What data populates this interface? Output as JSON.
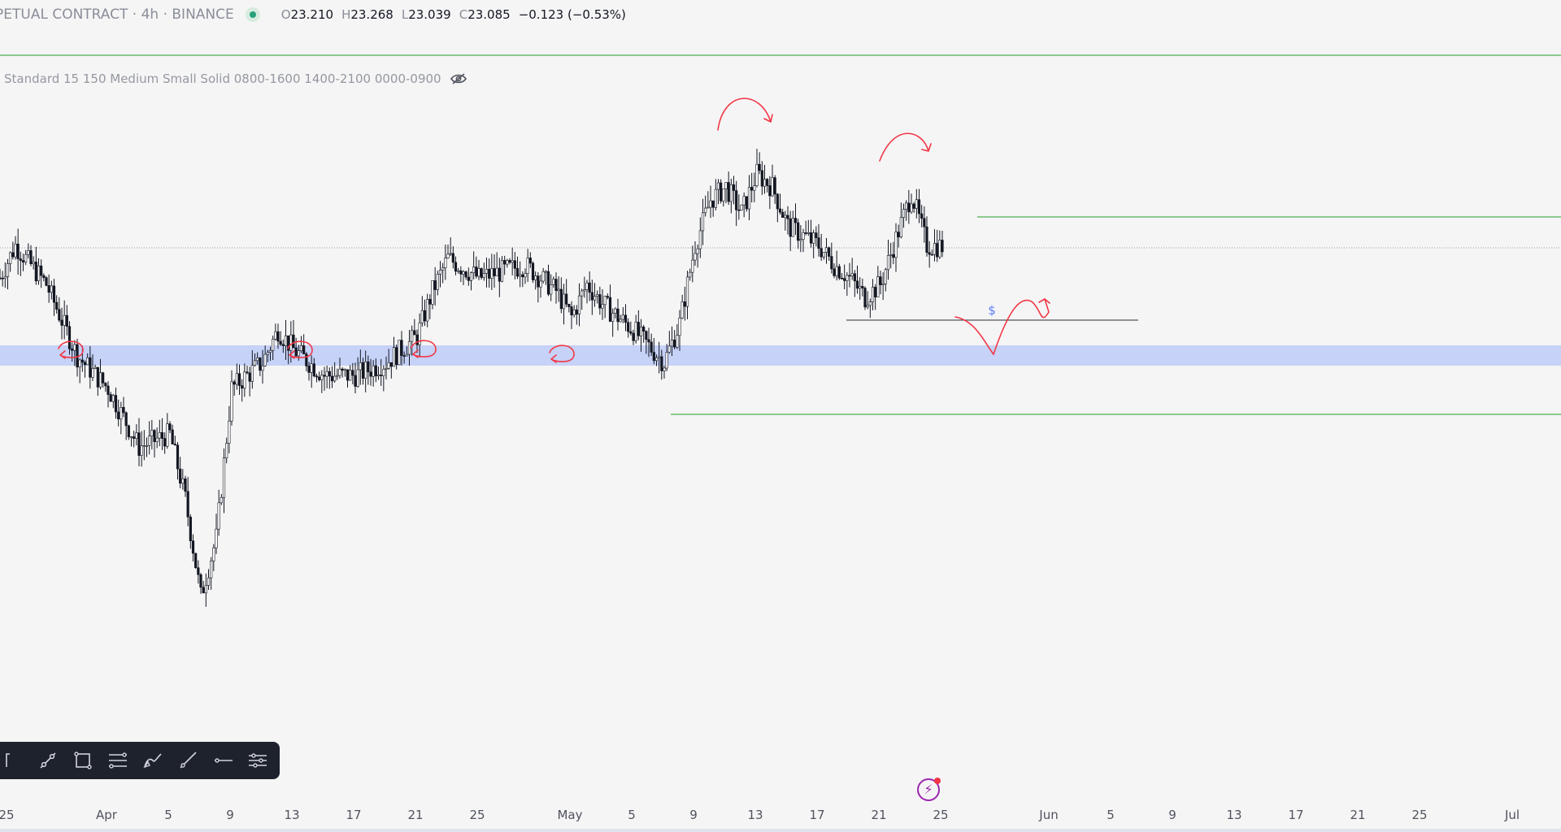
{
  "legend": {
    "symbol_title": "PETUAL CONTRACT · 4h · BINANCE",
    "open_label": "O",
    "open": "23.210",
    "high_label": "H",
    "high": "23.268",
    "low_label": "L",
    "low": "23.039",
    "close_label": "C",
    "close": "23.085",
    "change": "−0.123 (−0.53%)"
  },
  "indicator": {
    "text": "Standard 15 150 Medium Small Solid 0800-1600 1400-2100 0000-0900",
    "visibility_icon": "eye-off-icon"
  },
  "drawing_toolbar": {
    "tools": [
      "cursor-icon",
      "trendline-icon",
      "rectangle-icon",
      "fib-retracement-icon",
      "brush-icon",
      "ray-icon",
      "horizontal-ray-icon",
      "settings-icon"
    ]
  },
  "time_axis": {
    "ticks": [
      "25",
      "Apr",
      "5",
      "9",
      "13",
      "17",
      "21",
      "25",
      "May",
      "5",
      "9",
      "13",
      "17",
      "21",
      "25",
      "Jun",
      "5",
      "9",
      "13",
      "17",
      "21",
      "25",
      "Jul"
    ]
  },
  "annotation": {
    "dollar_label": "$"
  },
  "colors": {
    "background": "#f5f5f5",
    "candle": "#131722",
    "zone": "#c6d2f7",
    "green_line": "#4caf50",
    "red_marker": "#f23645",
    "toolbar_bg": "#1e222d"
  },
  "chart_data": {
    "type": "candlestick",
    "timeframe": "4h",
    "x_range": [
      "Mar 25",
      "Jul 2"
    ],
    "last_values": {
      "open": 23.21,
      "high": 23.268,
      "low": 23.039,
      "close": 23.085,
      "change": -0.123,
      "change_pct": -0.53
    },
    "price_path": [
      [
        "Mar 25",
        22.6
      ],
      [
        "Mar 26",
        23.1
      ],
      [
        "Mar 28",
        22.5
      ],
      [
        "Mar 30",
        21.4
      ],
      [
        "Apr 1",
        20.9
      ],
      [
        "Apr 3",
        20.0
      ],
      [
        "Apr 5",
        20.2
      ],
      [
        "Apr 6",
        19.2
      ],
      [
        "Apr 7",
        17.7
      ],
      [
        "Apr 8",
        18.6
      ],
      [
        "Apr 9",
        20.9
      ],
      [
        "Apr 11",
        21.3
      ],
      [
        "Apr 12",
        21.8
      ],
      [
        "Apr 13",
        21.5
      ],
      [
        "Apr 15",
        21.1
      ],
      [
        "Apr 17",
        21.1
      ],
      [
        "Apr 19",
        21.3
      ],
      [
        "Apr 21",
        21.7
      ],
      [
        "Apr 22",
        22.4
      ],
      [
        "Apr 23",
        22.9
      ],
      [
        "Apr 25",
        22.6
      ],
      [
        "Apr 28",
        22.8
      ],
      [
        "Apr 30",
        22.4
      ],
      [
        "May 1",
        22.0
      ],
      [
        "May 2",
        22.5
      ],
      [
        "May 3",
        22.2
      ],
      [
        "May 5",
        21.8
      ],
      [
        "May 7",
        21.3
      ],
      [
        "May 8",
        21.9
      ],
      [
        "May 9",
        23.1
      ],
      [
        "May 10",
        23.8
      ],
      [
        "May 11",
        24.0
      ],
      [
        "May 12",
        23.6
      ],
      [
        "May 13",
        24.2
      ],
      [
        "May 14",
        24.0
      ],
      [
        "May 15",
        23.4
      ],
      [
        "May 17",
        23.1
      ],
      [
        "May 18",
        22.8
      ],
      [
        "May 19",
        22.6
      ],
      [
        "May 20",
        22.3
      ],
      [
        "May 21",
        22.5
      ],
      [
        "May 22",
        23.2
      ],
      [
        "May 23",
        23.9
      ],
      [
        "May 24",
        23.1
      ],
      [
        "May 25",
        23.085
      ]
    ]
  }
}
